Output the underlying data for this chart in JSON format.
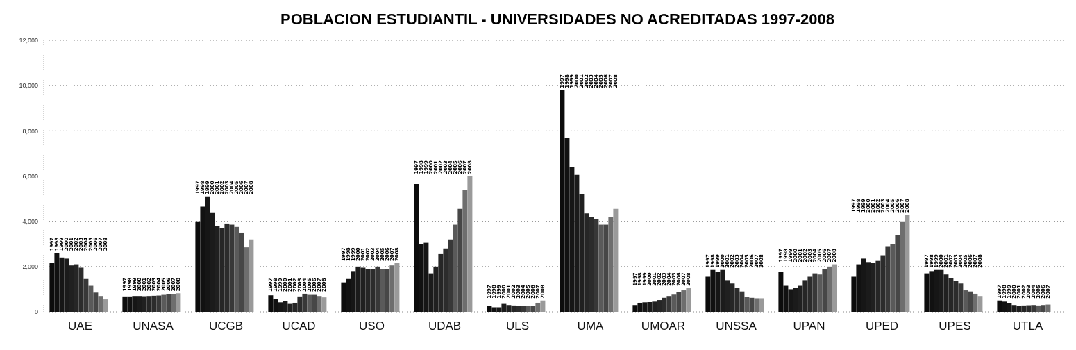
{
  "chart_data": {
    "type": "bar",
    "title": "POBLACION ESTUDIANTIL - UNIVERSIDADES NO ACREDITADAS 1997-2008",
    "categories": [
      "UAE",
      "UNASA",
      "UCGB",
      "UCAD",
      "USO",
      "UDAB",
      "ULS",
      "UMA",
      "UMOAR",
      "UNSSA",
      "UPAN",
      "UPED",
      "UPES",
      "UTLA"
    ],
    "ylim": [
      0,
      12000
    ],
    "yticks": [
      {
        "value": 0,
        "label": "0"
      },
      {
        "value": 2000,
        "label": "2,000"
      },
      {
        "value": 4000,
        "label": "4,000"
      },
      {
        "value": 6000,
        "label": "6,000"
      },
      {
        "value": 8000,
        "label": "8,000"
      },
      {
        "value": 10000,
        "label": "10,000"
      },
      {
        "value": 12000,
        "label": "12,000"
      }
    ],
    "grid": "y",
    "legend": false,
    "series": [
      {
        "name": "1997",
        "color": "#0c0c0c",
        "values": [
          2150,
          680,
          4000,
          730,
          1300,
          5650,
          250,
          9800,
          300,
          1550,
          1750,
          1550,
          1700,
          500
        ]
      },
      {
        "name": "1998",
        "color": "#111111",
        "values": [
          2600,
          680,
          4650,
          560,
          1450,
          3000,
          200,
          7700,
          400,
          1850,
          1150,
          2100,
          1800,
          450
        ]
      },
      {
        "name": "1999",
        "color": "#161616",
        "values": [
          2400,
          700,
          5100,
          420,
          1800,
          3050,
          200,
          6400,
          420,
          1750,
          1000,
          2350,
          1850,
          380
        ]
      },
      {
        "name": "2000",
        "color": "#1b1b1b",
        "values": [
          2350,
          700,
          4400,
          460,
          2000,
          1700,
          350,
          6050,
          430,
          1850,
          1050,
          2200,
          1850,
          300
        ]
      },
      {
        "name": "2001",
        "color": "#202020",
        "values": [
          2050,
          690,
          3800,
          350,
          1950,
          2000,
          300,
          5200,
          450,
          1400,
          1150,
          2150,
          1650,
          260
        ]
      },
      {
        "name": "2002",
        "color": "#262626",
        "values": [
          2100,
          700,
          3700,
          400,
          1900,
          2550,
          280,
          4350,
          520,
          1250,
          1400,
          2250,
          1500,
          280
        ]
      },
      {
        "name": "2003",
        "color": "#2c2c2c",
        "values": [
          1950,
          710,
          3900,
          680,
          1900,
          2800,
          260,
          4200,
          620,
          1050,
          1550,
          2500,
          1350,
          290
        ]
      },
      {
        "name": "2004",
        "color": "#383838",
        "values": [
          1450,
          720,
          3850,
          800,
          2000,
          3200,
          250,
          4100,
          700,
          900,
          1700,
          2900,
          1250,
          300
        ]
      },
      {
        "name": "2005",
        "color": "#5a5a5a",
        "values": [
          1150,
          750,
          3750,
          750,
          1900,
          3850,
          260,
          3850,
          760,
          650,
          1650,
          3000,
          950,
          280
        ]
      },
      {
        "name": "2006",
        "color": "#474747",
        "values": [
          850,
          790,
          3500,
          750,
          1900,
          4550,
          270,
          3850,
          870,
          620,
          1900,
          3400,
          900,
          300
        ]
      },
      {
        "name": "2007",
        "color": "#6e6e6e",
        "values": [
          700,
          780,
          2850,
          700,
          2050,
          5400,
          400,
          4200,
          950,
          600,
          2000,
          4000,
          800,
          320
        ]
      },
      {
        "name": "2008",
        "color": "#9a9a9a",
        "values": [
          550,
          820,
          3200,
          640,
          2150,
          6000,
          500,
          4550,
          1050,
          600,
          2100,
          4300,
          700,
          null
        ]
      }
    ]
  }
}
